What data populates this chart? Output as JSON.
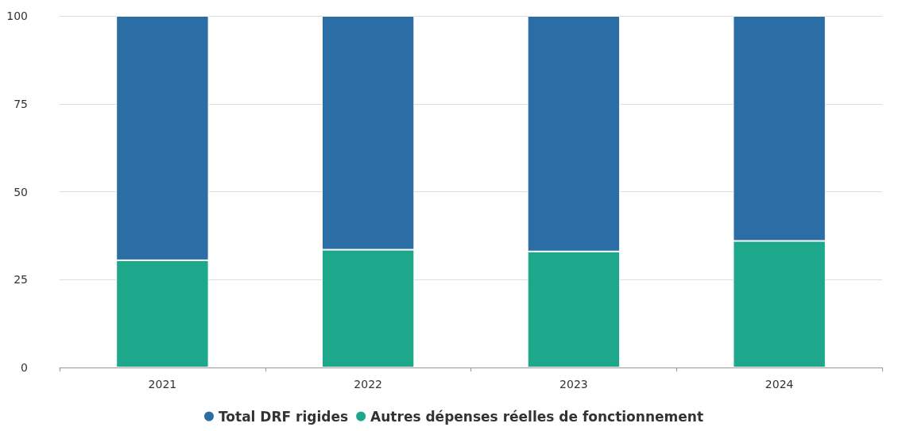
{
  "chart_data": {
    "type": "bar",
    "stacked": true,
    "categories": [
      "2021",
      "2022",
      "2023",
      "2024"
    ],
    "series": [
      {
        "name": "Autres dépenses réelles de fonctionnement",
        "color": "#1ea88b",
        "values": [
          30.5,
          33.5,
          33,
          36
        ]
      },
      {
        "name": "Total DRF rigides",
        "color": "#2b6ea6",
        "values": [
          69.5,
          66.5,
          67,
          64
        ]
      }
    ],
    "ylim": [
      0,
      100
    ],
    "yticks": [
      0,
      25,
      50,
      75,
      100
    ],
    "grid": "y",
    "legend": "bottom"
  }
}
